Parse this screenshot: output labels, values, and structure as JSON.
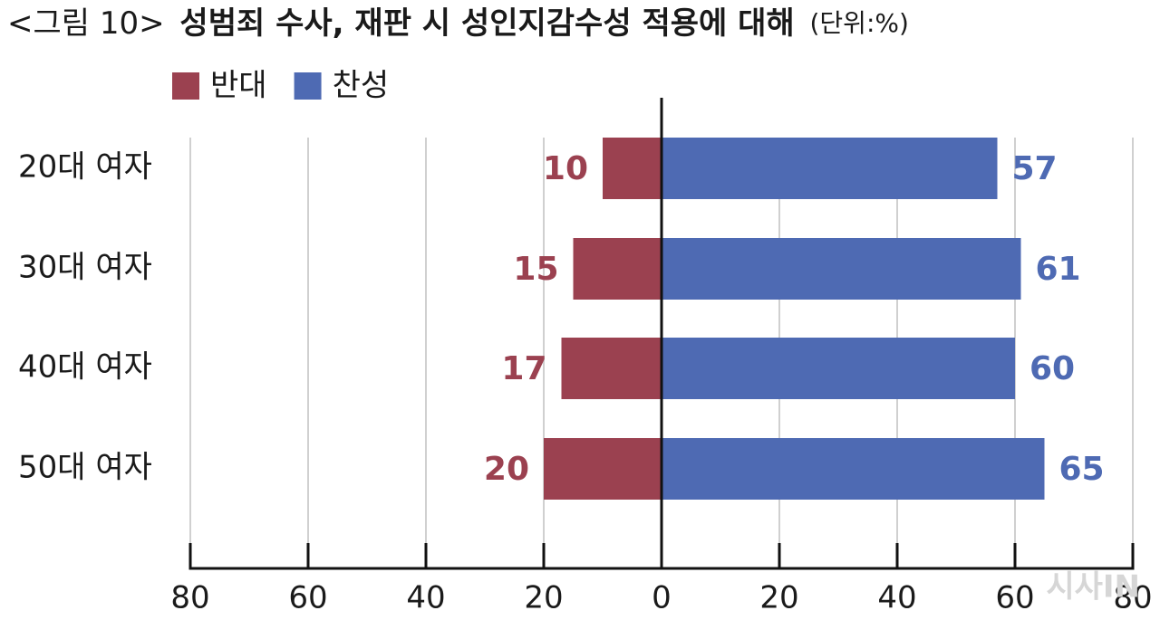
{
  "chart_data": {
    "type": "diverging-bar",
    "figure_label": "<그림 10>",
    "title": "성범죄 수사, 재판 시 성인지감수성 적용에 대해",
    "unit_label": "(단위:%)",
    "categories": [
      "20대 여자",
      "30대 여자",
      "40대 여자",
      "50대 여자"
    ],
    "series": [
      {
        "name": "반대",
        "color": "#9b4150",
        "side": "left",
        "values": [
          10,
          15,
          17,
          20
        ]
      },
      {
        "name": "찬성",
        "color": "#4e6ab3",
        "side": "right",
        "values": [
          57,
          61,
          60,
          65
        ]
      }
    ],
    "xlim": [
      -80,
      80
    ],
    "xticks": [
      {
        "value": -80,
        "label": "80"
      },
      {
        "value": -60,
        "label": "60"
      },
      {
        "value": -40,
        "label": "40"
      },
      {
        "value": -20,
        "label": "20"
      },
      0,
      20,
      40,
      60,
      80
    ],
    "grid": true,
    "watermark": "시사IN"
  }
}
